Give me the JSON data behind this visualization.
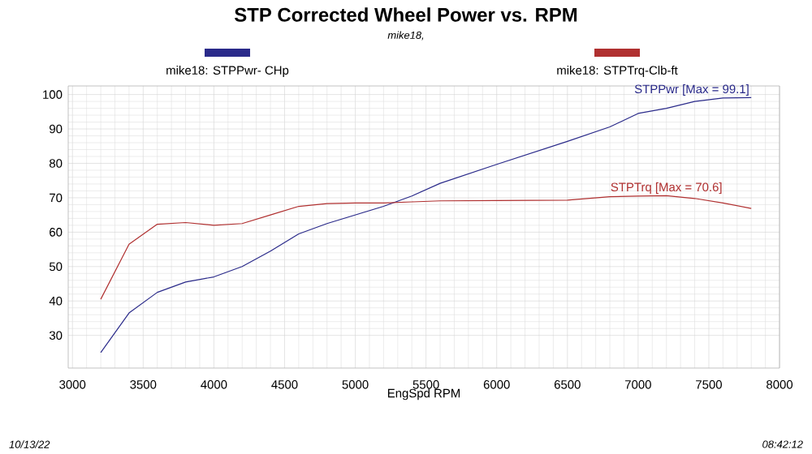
{
  "chart_data": {
    "type": "line",
    "title": "STP Corrected Wheel Power vs. RPM",
    "subtitle": "mike18,",
    "xlabel": "EngSpd  RPM",
    "x": [
      3200,
      3400,
      3600,
      3800,
      4000,
      4200,
      4400,
      4600,
      4800,
      5000,
      5200,
      5400,
      5600,
      6000,
      6500,
      6800,
      7000,
      7200,
      7400,
      7600,
      7800
    ],
    "series": [
      {
        "name": "mike18: STPPwr- CHp",
        "color": "#2a2a8a",
        "values": [
          25,
          36.5,
          42.5,
          45.5,
          47,
          50,
          54.5,
          59.5,
          62.5,
          65,
          67.5,
          70.5,
          74.2,
          79.7,
          86.4,
          90.6,
          94.5,
          96,
          98,
          99,
          99.1
        ]
      },
      {
        "name": "mike18: STPTrq-Clb-ft",
        "color": "#b03030",
        "values": [
          40.5,
          56.5,
          62.3,
          62.8,
          62,
          62.5,
          65,
          67.5,
          68.3,
          68.5,
          68.5,
          68.8,
          69.1,
          69.2,
          69.3,
          70.3,
          70.5,
          70.6,
          69.8,
          68.5,
          66.9
        ]
      }
    ],
    "xlim": [
      2970,
      8000
    ],
    "ylim": [
      20.5,
      102.5
    ],
    "xticks": [
      3000,
      3500,
      4000,
      4500,
      5000,
      5500,
      6000,
      6500,
      7000,
      7500,
      8000
    ],
    "yticks": [
      30,
      40,
      50,
      60,
      70,
      80,
      90,
      100
    ],
    "grid": true,
    "legend": "top",
    "marker": "none",
    "line_style": "solid",
    "annotations": [
      {
        "text": "STPPwr [Max = 99.1]",
        "x": 7800,
        "y": 99.1
      },
      {
        "text": "STPTrq [Max = 70.6]",
        "x": 7200,
        "y": 70.6
      },
      "10/13/22",
      "08:42:12"
    ]
  }
}
